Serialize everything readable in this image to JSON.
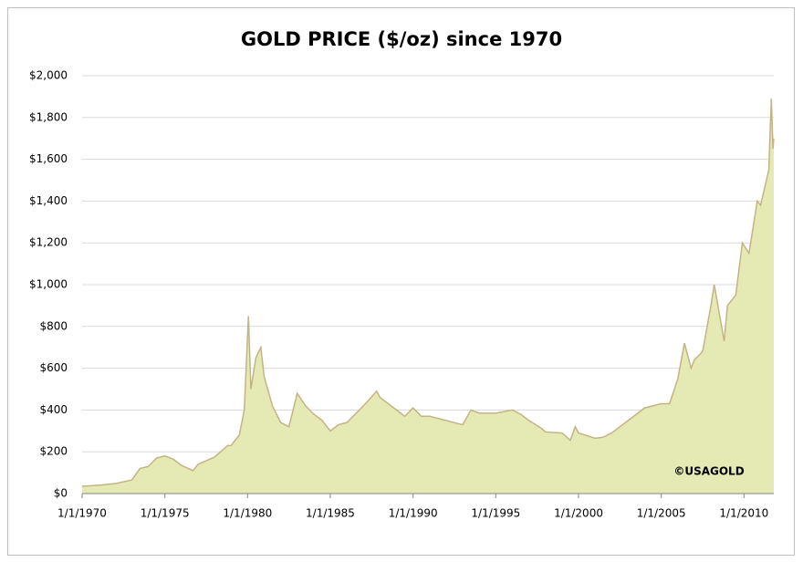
{
  "chart_data": {
    "type": "area",
    "title": "GOLD PRICE ($/oz) since 1970",
    "annotation": "©USAGOLD",
    "color": "#c2b486",
    "fill_color": "#e5eab4",
    "grid": true,
    "x": [
      1970,
      1971,
      1972,
      1973,
      1973.5,
      1974,
      1974.5,
      1975,
      1975.5,
      1976,
      1976.7,
      1977,
      1978,
      1978.8,
      1979,
      1979.5,
      1979.8,
      1980.05,
      1980.2,
      1980.5,
      1980.8,
      1981,
      1981.5,
      1982,
      1982.5,
      1983,
      1983.5,
      1984,
      1984.5,
      1985,
      1985.5,
      1986,
      1986.5,
      1987,
      1987.8,
      1988,
      1988.5,
      1989,
      1989.5,
      1990,
      1990.5,
      1991,
      1992,
      1992.7,
      1993,
      1993.5,
      1994,
      1995,
      1996,
      1996.5,
      1997,
      1997.8,
      1998,
      1999,
      1999.5,
      1999.8,
      2000,
      2001,
      2001.5,
      2002,
      2003,
      2004,
      2005,
      2005.5,
      2006,
      2006.4,
      2006.8,
      2007,
      2007.5,
      2008,
      2008.2,
      2008.8,
      2009,
      2009.5,
      2009.9,
      2010.3,
      2010.8,
      2011,
      2011.5,
      2011.65,
      2011.75,
      2011.8
    ],
    "values": [
      35,
      40,
      48,
      65,
      120,
      130,
      170,
      180,
      165,
      135,
      110,
      140,
      175,
      230,
      230,
      280,
      400,
      850,
      500,
      650,
      700,
      560,
      420,
      340,
      320,
      480,
      420,
      380,
      350,
      300,
      330,
      340,
      380,
      420,
      490,
      460,
      430,
      400,
      370,
      410,
      370,
      370,
      350,
      335,
      330,
      400,
      385,
      385,
      400,
      380,
      350,
      310,
      295,
      290,
      255,
      320,
      290,
      265,
      270,
      290,
      350,
      410,
      430,
      430,
      550,
      720,
      600,
      640,
      680,
      900,
      1000,
      730,
      900,
      950,
      1200,
      1150,
      1400,
      1380,
      1550,
      1890,
      1650,
      1700
    ],
    "xlim": [
      1970,
      2011.8
    ],
    "xticks": [
      {
        "value": 1970,
        "label": "1/1/1970"
      },
      {
        "value": 1975,
        "label": "1/1/1975"
      },
      {
        "value": 1980,
        "label": "1/1/1980"
      },
      {
        "value": 1985,
        "label": "1/1/1985"
      },
      {
        "value": 1990,
        "label": "1/1/1990"
      },
      {
        "value": 1995,
        "label": "1/1/1995"
      },
      {
        "value": 2000,
        "label": "1/1/2000"
      },
      {
        "value": 2005,
        "label": "1/1/2005"
      },
      {
        "value": 2010,
        "label": "1/1/2010"
      }
    ],
    "ylim": [
      0,
      2000
    ],
    "yticks": [
      {
        "value": 0,
        "label": "$0"
      },
      {
        "value": 200,
        "label": "$200"
      },
      {
        "value": 400,
        "label": "$400"
      },
      {
        "value": 600,
        "label": "$600"
      },
      {
        "value": 800,
        "label": "$800"
      },
      {
        "value": 1000,
        "label": "$1,000"
      },
      {
        "value": 1200,
        "label": "$1,200"
      },
      {
        "value": 1400,
        "label": "$1,400"
      },
      {
        "value": 1600,
        "label": "$1,600"
      },
      {
        "value": 1800,
        "label": "$1,800"
      },
      {
        "value": 2000,
        "label": "$2,000"
      }
    ]
  }
}
